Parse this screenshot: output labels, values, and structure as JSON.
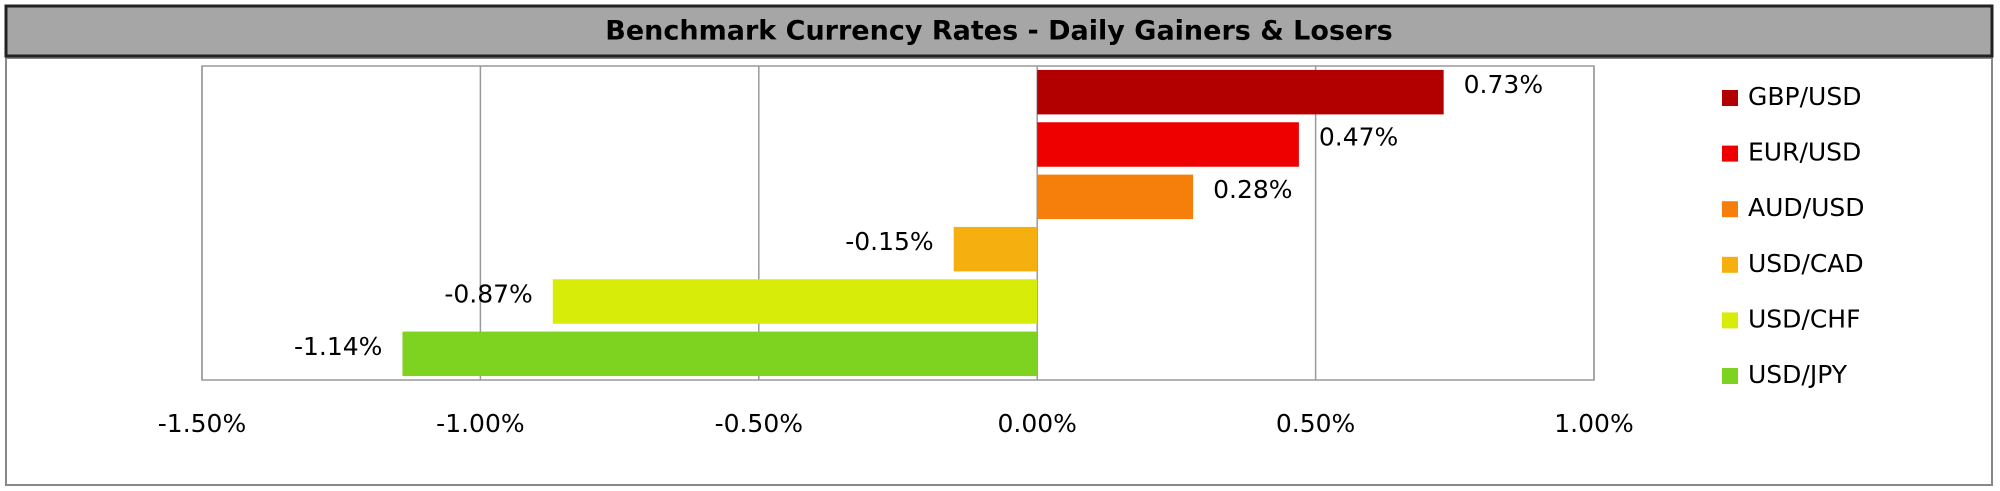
{
  "chart_data": {
    "type": "hbar",
    "title": "Benchmark Currency Rates - Daily Gainers & Losers",
    "categories": [
      "GBP/USD",
      "EUR/USD",
      "AUD/USD",
      "USD/CAD",
      "USD/CHF",
      "USD/JPY"
    ],
    "values": [
      0.73,
      0.47,
      0.28,
      -0.15,
      -0.87,
      -1.14
    ],
    "value_labels": [
      "0.73%",
      "0.47%",
      "0.28%",
      "-0.15%",
      "-0.87%",
      "-1.14%"
    ],
    "colors": [
      "#b20000",
      "#ee0000",
      "#f57f0a",
      "#f5b010",
      "#d8ec0a",
      "#7ed321"
    ],
    "xlim": [
      -1.5,
      1.0
    ],
    "xticks": [
      {
        "value": -1.5,
        "label": "-1.50%"
      },
      {
        "value": -1.0,
        "label": "-1.00%"
      },
      {
        "value": -0.5,
        "label": "-0.50%"
      },
      {
        "value": 0,
        "label": "0.00%"
      },
      {
        "value": 0.5,
        "label": "0.50%"
      },
      {
        "value": 1.0,
        "label": "1.00%"
      }
    ],
    "grid": true,
    "legend": "right"
  }
}
